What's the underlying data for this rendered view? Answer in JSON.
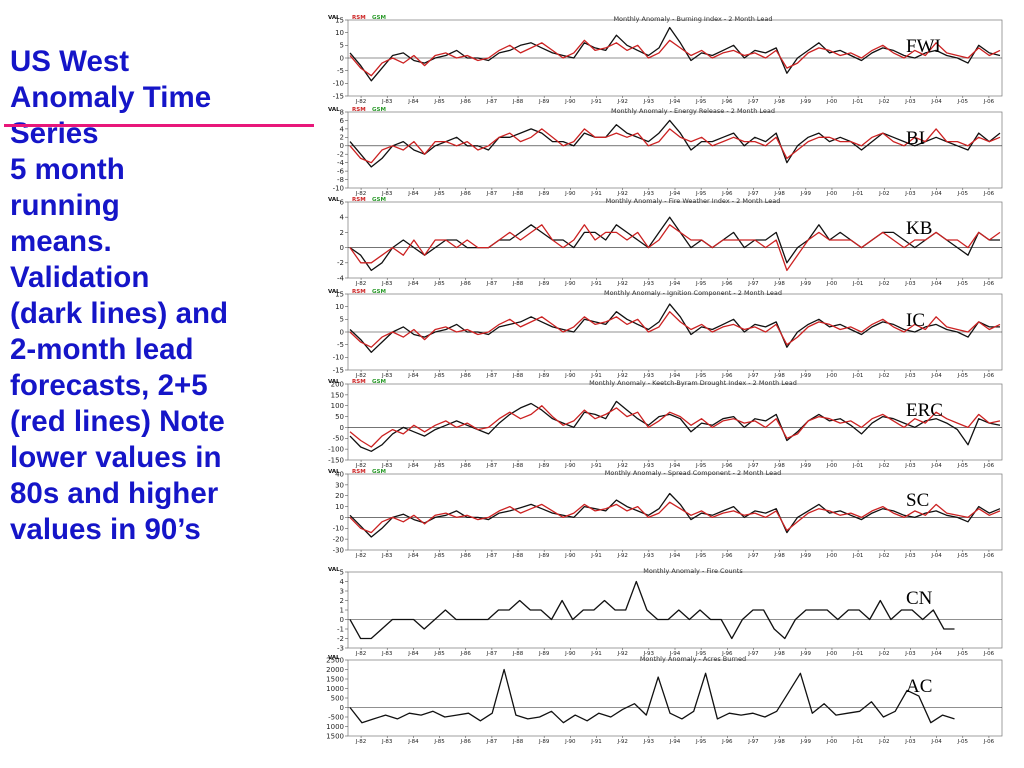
{
  "side_text": {
    "line1": "US West",
    "line2": "Anomaly Time",
    "line3": "Series",
    "line4": "5 month",
    "line5": "running",
    "line6": "means.",
    "line7": "Validation",
    "line8": "(dark lines) and",
    "line9": "2-month lead",
    "line10": "forecasts, 2+5",
    "line11": "(red lines) Note",
    "line12": "lower values in",
    "line13": "80s and higher",
    "line14": "values in 90’s"
  },
  "legend": {
    "val": "VAL",
    "rsm": "RSM",
    "gsm": "GSM"
  },
  "colors": {
    "validation": "#111111",
    "forecast": "#cc2222",
    "side_text": "#1515c8",
    "underline": "#e8177a",
    "rsm": "#cc2222",
    "gsm": "#2a9a2a"
  },
  "x_ticks": [
    "J-82",
    "J-83",
    "J-84",
    "J-85",
    "J-86",
    "J-87",
    "J-88",
    "J-89",
    "J-90",
    "J-91",
    "J-92",
    "J-93",
    "J-94",
    "J-95",
    "J-96",
    "J-97",
    "J-98",
    "J-99",
    "J-00",
    "J-01",
    "J-02",
    "J-03",
    "J-04",
    "J-05",
    "J-06"
  ],
  "chart_data": [
    {
      "type": "line",
      "label": "FWI",
      "title": "Monthly Anomaly - Burning Index - 2 Month Lead",
      "ylim": [
        -15,
        15
      ],
      "yticks": [
        15,
        10,
        5,
        0,
        -5,
        -10,
        -15
      ],
      "legend": true,
      "series": [
        {
          "role": "validation",
          "color": "#111111",
          "values": [
            2,
            -3,
            -9,
            -4,
            1,
            2,
            -1,
            -2,
            0,
            1,
            3,
            0,
            0,
            -1,
            2,
            3,
            5,
            6,
            4,
            2,
            1,
            0,
            6,
            4,
            3,
            9,
            5,
            3,
            1,
            4,
            12,
            6,
            -1,
            2,
            1,
            3,
            5,
            0,
            3,
            2,
            4,
            -6,
            0,
            3,
            6,
            2,
            3,
            1,
            -1,
            2,
            4,
            3,
            1,
            0,
            2,
            3,
            1,
            0,
            -2,
            5,
            2,
            1
          ]
        },
        {
          "role": "forecast",
          "color": "#cc2222",
          "values": [
            1,
            -4,
            -7,
            -2,
            0,
            -2,
            1,
            -3,
            1,
            2,
            0,
            1,
            -1,
            0,
            3,
            5,
            2,
            4,
            6,
            3,
            0,
            2,
            7,
            3,
            4,
            6,
            3,
            5,
            0,
            2,
            7,
            4,
            1,
            3,
            0,
            2,
            3,
            1,
            2,
            0,
            3,
            -4,
            -2,
            2,
            4,
            3,
            1,
            2,
            0,
            3,
            5,
            2,
            0,
            3,
            1,
            6,
            2,
            1,
            0,
            4,
            1,
            3
          ]
        }
      ]
    },
    {
      "type": "line",
      "label": "BI",
      "title": "Monthly Anomaly - Energy Release - 2 Month Lead",
      "ylim": [
        -10,
        8
      ],
      "yticks": [
        8,
        6,
        4,
        2,
        0,
        -2,
        -4,
        -6,
        -8,
        -10
      ],
      "legend": true,
      "series": [
        {
          "role": "validation",
          "color": "#111111",
          "values": [
            1,
            -2,
            -5,
            -3,
            0,
            1,
            -1,
            -2,
            0,
            1,
            2,
            0,
            0,
            -1,
            2,
            2,
            3,
            4,
            3,
            1,
            1,
            0,
            3,
            2,
            2,
            5,
            3,
            2,
            1,
            3,
            6,
            3,
            -1,
            1,
            1,
            2,
            3,
            0,
            2,
            1,
            3,
            -4,
            0,
            2,
            3,
            1,
            2,
            1,
            -1,
            1,
            3,
            2,
            1,
            0,
            1,
            2,
            1,
            0,
            -1,
            3,
            1,
            3
          ]
        },
        {
          "role": "forecast",
          "color": "#cc2222",
          "values": [
            0,
            -3,
            -4,
            -1,
            0,
            -1,
            1,
            -2,
            1,
            1,
            0,
            1,
            -1,
            0,
            2,
            3,
            1,
            2,
            4,
            2,
            0,
            1,
            4,
            2,
            2,
            3,
            2,
            3,
            0,
            1,
            4,
            2,
            1,
            2,
            0,
            1,
            2,
            1,
            1,
            0,
            2,
            -3,
            -1,
            1,
            2,
            2,
            1,
            1,
            0,
            2,
            3,
            1,
            0,
            2,
            1,
            4,
            1,
            1,
            0,
            2,
            1,
            2
          ]
        }
      ]
    },
    {
      "type": "line",
      "label": "KB",
      "title": "Monthly Anomaly - Fire Weather Index - 2 Month Lead",
      "ylim": [
        -4,
        6
      ],
      "yticks": [
        6,
        4,
        2,
        0,
        -2,
        -4
      ],
      "legend": true,
      "series": [
        {
          "role": "validation",
          "color": "#111111",
          "values": [
            0,
            -1,
            -3,
            -2,
            0,
            1,
            0,
            -1,
            0,
            1,
            1,
            0,
            0,
            0,
            1,
            1,
            2,
            3,
            2,
            1,
            1,
            0,
            2,
            2,
            1,
            3,
            2,
            1,
            0,
            2,
            4,
            2,
            0,
            1,
            0,
            1,
            2,
            0,
            1,
            1,
            2,
            -2,
            0,
            1,
            3,
            1,
            2,
            1,
            0,
            1,
            2,
            2,
            1,
            0,
            1,
            2,
            1,
            0,
            -1,
            2,
            1,
            1
          ]
        },
        {
          "role": "forecast",
          "color": "#cc2222",
          "values": [
            0,
            -2,
            -2,
            -1,
            0,
            -1,
            1,
            -1,
            1,
            1,
            0,
            1,
            0,
            0,
            1,
            2,
            1,
            2,
            3,
            1,
            0,
            1,
            3,
            1,
            2,
            2,
            1,
            2,
            0,
            1,
            3,
            2,
            1,
            1,
            0,
            1,
            1,
            1,
            1,
            0,
            1,
            -3,
            -1,
            1,
            2,
            1,
            1,
            1,
            0,
            1,
            2,
            1,
            0,
            1,
            1,
            2,
            1,
            1,
            0,
            2,
            1,
            2
          ]
        }
      ]
    },
    {
      "type": "line",
      "label": "IC",
      "title": "Monthly Anomaly - Ignition Component - 2 Month Lead",
      "ylim": [
        -15,
        15
      ],
      "yticks": [
        15,
        10,
        5,
        0,
        -5,
        -10,
        -15
      ],
      "legend": true,
      "series": [
        {
          "role": "validation",
          "color": "#111111",
          "values": [
            1,
            -3,
            -8,
            -4,
            0,
            2,
            -1,
            -2,
            0,
            1,
            3,
            0,
            0,
            -1,
            2,
            3,
            4,
            6,
            4,
            2,
            1,
            0,
            5,
            4,
            3,
            8,
            5,
            3,
            1,
            4,
            11,
            6,
            -1,
            2,
            1,
            3,
            5,
            0,
            3,
            2,
            4,
            -6,
            0,
            3,
            5,
            2,
            3,
            1,
            -1,
            2,
            4,
            3,
            1,
            0,
            2,
            3,
            1,
            0,
            -2,
            4,
            2,
            2
          ]
        },
        {
          "role": "forecast",
          "color": "#cc2222",
          "values": [
            0,
            -4,
            -6,
            -2,
            0,
            -2,
            1,
            -3,
            1,
            2,
            0,
            1,
            -1,
            0,
            3,
            5,
            2,
            4,
            6,
            3,
            0,
            2,
            6,
            3,
            4,
            6,
            3,
            5,
            0,
            2,
            8,
            4,
            1,
            3,
            0,
            2,
            3,
            1,
            2,
            0,
            3,
            -5,
            -2,
            2,
            4,
            3,
            1,
            2,
            0,
            3,
            5,
            2,
            0,
            3,
            1,
            6,
            2,
            1,
            0,
            4,
            1,
            3
          ]
        }
      ]
    },
    {
      "type": "line",
      "label": "ERC",
      "title": "Monthly Anomaly - Keetch-Byram Drought Index - 2 Month Lead",
      "ylim": [
        -150,
        200
      ],
      "yticks": [
        200,
        150,
        100,
        50,
        0,
        -50,
        -100,
        -150
      ],
      "legend": true,
      "series": [
        {
          "role": "validation",
          "color": "#111111",
          "values": [
            -40,
            -90,
            -110,
            -80,
            -30,
            0,
            -20,
            -40,
            -10,
            10,
            30,
            10,
            -10,
            -30,
            20,
            60,
            90,
            110,
            80,
            40,
            20,
            0,
            70,
            60,
            40,
            120,
            80,
            40,
            10,
            50,
            60,
            40,
            -20,
            20,
            10,
            40,
            50,
            0,
            40,
            30,
            60,
            -60,
            -20,
            30,
            60,
            30,
            40,
            10,
            -30,
            20,
            50,
            40,
            20,
            0,
            30,
            40,
            20,
            -10,
            -80,
            40,
            20,
            10
          ]
        },
        {
          "role": "forecast",
          "color": "#cc2222",
          "values": [
            -20,
            -60,
            -90,
            -40,
            -10,
            -30,
            10,
            -20,
            10,
            30,
            0,
            20,
            -10,
            0,
            40,
            70,
            40,
            60,
            100,
            50,
            10,
            30,
            80,
            40,
            60,
            90,
            50,
            70,
            0,
            30,
            70,
            50,
            10,
            40,
            0,
            30,
            40,
            20,
            30,
            0,
            40,
            -50,
            -30,
            30,
            50,
            40,
            20,
            30,
            0,
            40,
            60,
            30,
            0,
            40,
            20,
            70,
            40,
            20,
            0,
            60,
            20,
            30
          ]
        }
      ]
    },
    {
      "type": "line",
      "label": "SC",
      "title": "Monthly Anomaly - Spread Component - 2 Month Lead",
      "ylim": [
        -30,
        40
      ],
      "yticks": [
        40,
        30,
        20,
        10,
        0,
        -10,
        -20,
        -30
      ],
      "legend": true,
      "series": [
        {
          "role": "validation",
          "color": "#111111",
          "values": [
            2,
            -8,
            -18,
            -10,
            0,
            3,
            -2,
            -5,
            0,
            2,
            6,
            0,
            0,
            -2,
            4,
            6,
            9,
            12,
            8,
            4,
            2,
            0,
            10,
            8,
            6,
            16,
            10,
            6,
            2,
            8,
            22,
            12,
            -2,
            4,
            2,
            6,
            10,
            0,
            6,
            4,
            8,
            -14,
            0,
            6,
            12,
            4,
            6,
            2,
            -2,
            4,
            8,
            6,
            2,
            0,
            4,
            6,
            2,
            0,
            -4,
            10,
            4,
            8
          ]
        },
        {
          "role": "forecast",
          "color": "#cc2222",
          "values": [
            0,
            -10,
            -14,
            -4,
            0,
            -4,
            2,
            -6,
            2,
            4,
            0,
            2,
            -2,
            0,
            6,
            10,
            4,
            8,
            12,
            6,
            0,
            4,
            12,
            6,
            8,
            12,
            6,
            10,
            0,
            4,
            14,
            8,
            2,
            6,
            0,
            4,
            6,
            2,
            4,
            0,
            6,
            -12,
            -4,
            4,
            8,
            6,
            2,
            4,
            0,
            6,
            10,
            4,
            0,
            6,
            2,
            12,
            4,
            2,
            0,
            8,
            2,
            6
          ]
        }
      ]
    },
    {
      "type": "line",
      "label": "CN",
      "title": "Monthly Anomaly - Fire Counts",
      "ylim": [
        -3,
        5
      ],
      "yticks": [
        5,
        4,
        3,
        2,
        1,
        0,
        -1,
        -2,
        -3
      ],
      "legend": false,
      "series": [
        {
          "role": "validation",
          "color": "#111111",
          "values": [
            0,
            -2,
            -2,
            -1,
            0,
            0,
            0,
            -1,
            0,
            1,
            0,
            0,
            0,
            0,
            1,
            1,
            2,
            1,
            1,
            0,
            2,
            0,
            1,
            1,
            2,
            1,
            1,
            4,
            1,
            0,
            0,
            1,
            0,
            1,
            0,
            0,
            -2,
            0,
            1,
            1,
            -1,
            -2,
            0,
            1,
            1,
            1,
            0,
            1,
            1,
            0,
            2,
            0,
            1,
            1,
            0,
            1,
            -1,
            -1
          ]
        }
      ]
    },
    {
      "type": "line",
      "label": "AC",
      "title": "Monthly Anomaly - Acres Burned",
      "ylim": [
        -1500,
        2500
      ],
      "yticks": [
        2500,
        2000,
        1500,
        1000,
        500,
        0,
        -500,
        -1000,
        -1500
      ],
      "legend": false,
      "series": [
        {
          "role": "validation",
          "color": "#111111",
          "values": [
            0,
            -800,
            -600,
            -400,
            -600,
            -300,
            -400,
            -200,
            -500,
            -400,
            -300,
            -700,
            -300,
            2000,
            -400,
            -600,
            -500,
            -200,
            -800,
            -400,
            -700,
            -300,
            -500,
            -100,
            200,
            -400,
            1600,
            -300,
            -600,
            -200,
            1800,
            -600,
            -300,
            -400,
            -300,
            -500,
            -200,
            800,
            1800,
            -300,
            200,
            -400,
            -300,
            -200,
            300,
            -500,
            -200,
            900,
            600,
            -800,
            -400,
            -600
          ]
        }
      ]
    }
  ]
}
